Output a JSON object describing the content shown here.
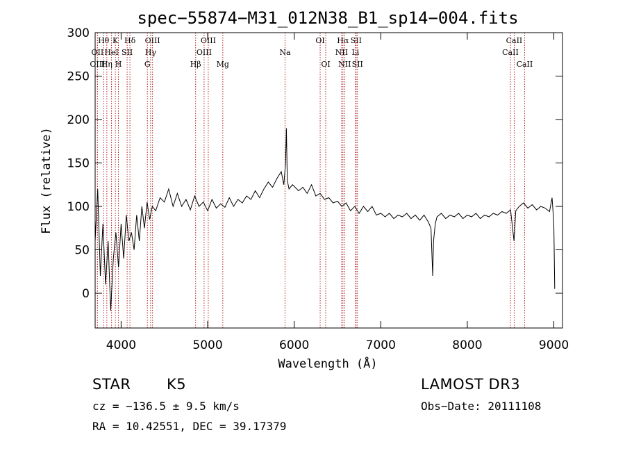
{
  "chart_data": {
    "type": "line",
    "title": "spec−55874−M31_012N38_B1_sp14−004.fits",
    "xlabel": "Wavelength (Å)",
    "ylabel": "Flux (relative)",
    "xlim": [
      3700,
      9100
    ],
    "ylim": [
      -40,
      300
    ],
    "xticks": [
      4000,
      5000,
      6000,
      7000,
      8000,
      9000
    ],
    "yticks": [
      0,
      50,
      100,
      150,
      200,
      250,
      300
    ],
    "series": [
      {
        "name": "flux",
        "x": [
          3700,
          3730,
          3760,
          3790,
          3820,
          3850,
          3880,
          3910,
          3940,
          3970,
          4000,
          4030,
          4060,
          4090,
          4120,
          4150,
          4180,
          4210,
          4240,
          4270,
          4300,
          4330,
          4360,
          4400,
          4450,
          4500,
          4550,
          4600,
          4650,
          4700,
          4750,
          4800,
          4850,
          4900,
          4950,
          5000,
          5050,
          5100,
          5150,
          5200,
          5250,
          5300,
          5350,
          5400,
          5450,
          5500,
          5550,
          5600,
          5650,
          5700,
          5750,
          5800,
          5850,
          5880,
          5900,
          5910,
          5920,
          5940,
          5980,
          6050,
          6100,
          6150,
          6200,
          6250,
          6300,
          6350,
          6400,
          6450,
          6500,
          6550,
          6600,
          6650,
          6700,
          6750,
          6800,
          6850,
          6900,
          6950,
          7000,
          7050,
          7100,
          7150,
          7200,
          7250,
          7300,
          7350,
          7400,
          7450,
          7500,
          7550,
          7580,
          7600,
          7610,
          7630,
          7650,
          7700,
          7750,
          7800,
          7850,
          7900,
          7950,
          8000,
          8050,
          8100,
          8150,
          8200,
          8250,
          8300,
          8350,
          8400,
          8450,
          8500,
          8540,
          8560,
          8600,
          8650,
          8700,
          8750,
          8800,
          8850,
          8900,
          8950,
          8980,
          9000,
          9010
        ],
        "values": [
          60,
          120,
          20,
          80,
          10,
          60,
          -20,
          40,
          70,
          30,
          80,
          40,
          90,
          60,
          70,
          50,
          90,
          60,
          100,
          75,
          105,
          85,
          100,
          95,
          110,
          105,
          120,
          100,
          115,
          100,
          108,
          96,
          112,
          100,
          105,
          95,
          108,
          98,
          103,
          99,
          110,
          100,
          108,
          104,
          112,
          108,
          118,
          110,
          120,
          128,
          122,
          132,
          140,
          125,
          150,
          190,
          130,
          120,
          125,
          118,
          122,
          115,
          125,
          112,
          115,
          108,
          110,
          104,
          106,
          100,
          104,
          95,
          100,
          92,
          100,
          94,
          100,
          90,
          92,
          88,
          92,
          86,
          90,
          88,
          92,
          86,
          90,
          84,
          90,
          82,
          75,
          20,
          60,
          80,
          88,
          92,
          86,
          90,
          88,
          92,
          86,
          90,
          88,
          92,
          86,
          90,
          88,
          92,
          90,
          94,
          92,
          96,
          60,
          95,
          100,
          104,
          98,
          102,
          96,
          100,
          98,
          94,
          110,
          80,
          5
        ]
      }
    ],
    "spectral_lines": [
      {
        "name": "Hθ",
        "wave": 3798,
        "row": 0
      },
      {
        "name": "OII",
        "wave": 3727,
        "row": 1
      },
      {
        "name": "OIII",
        "wave": 3727,
        "row": 2
      },
      {
        "name": "K",
        "wave": 3934,
        "row": 0
      },
      {
        "name": "HeI",
        "wave": 3889,
        "row": 1
      },
      {
        "name": "Hη",
        "wave": 3835,
        "row": 2
      },
      {
        "name": "Hδ",
        "wave": 4102,
        "row": 0
      },
      {
        "name": "SII",
        "wave": 4070,
        "row": 1
      },
      {
        "name": "H",
        "wave": 3969,
        "row": 2
      },
      {
        "name": "OIII",
        "wave": 4363,
        "row": 0
      },
      {
        "name": "Hγ",
        "wave": 4341,
        "row": 1
      },
      {
        "name": "G",
        "wave": 4304,
        "row": 2
      },
      {
        "name": "OIII",
        "wave": 5007,
        "row": 0
      },
      {
        "name": "OIII",
        "wave": 4959,
        "row": 1
      },
      {
        "name": "Hβ",
        "wave": 4861,
        "row": 2
      },
      {
        "name": "Mg",
        "wave": 5175,
        "row": 2
      },
      {
        "name": "Na",
        "wave": 5894,
        "row": 1
      },
      {
        "name": "OI",
        "wave": 6300,
        "row": 0
      },
      {
        "name": "OI",
        "wave": 6364,
        "row": 2
      },
      {
        "name": "Hα",
        "wave": 6563,
        "row": 0
      },
      {
        "name": "NII",
        "wave": 6548,
        "row": 1
      },
      {
        "name": "NII",
        "wave": 6583,
        "row": 2
      },
      {
        "name": "SII",
        "wave": 6716,
        "row": 0
      },
      {
        "name": "Li",
        "wave": 6708,
        "row": 1
      },
      {
        "name": "SII",
        "wave": 6731,
        "row": 2
      },
      {
        "name": "CaII",
        "wave": 8542,
        "row": 0
      },
      {
        "name": "CaII",
        "wave": 8498,
        "row": 1
      },
      {
        "name": "CaII",
        "wave": 8662,
        "row": 2
      }
    ]
  },
  "info": {
    "class_label": "STAR",
    "subclass": "K5",
    "survey": "LAMOST DR3",
    "cz": "cz = −136.5 ± 9.5 km/s",
    "obs_date": "Obs−Date: 20111108",
    "radec": "RA =  10.42551, DEC =  39.17379"
  },
  "colors": {
    "line_marker": "#b22222",
    "spectrum": "#000000"
  }
}
